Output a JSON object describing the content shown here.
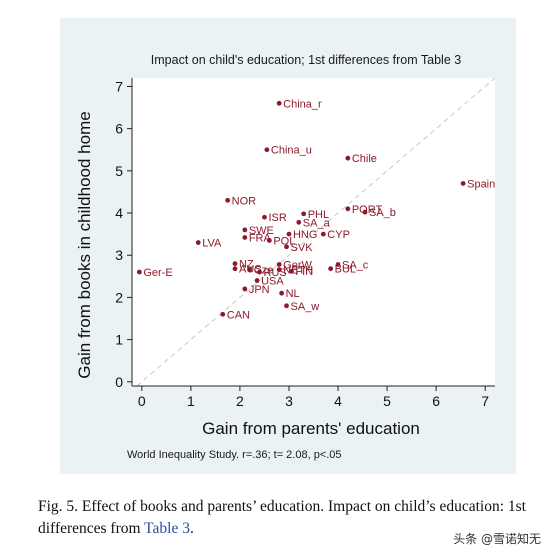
{
  "chart_data": {
    "type": "scatter",
    "title": "Impact on child's education; 1st differences from Table 3",
    "xlabel": "Gain from parents' education",
    "ylabel": "Gain from books in childhood home",
    "xlim": [
      -0.2,
      7.2
    ],
    "ylim": [
      -0.1,
      7.2
    ],
    "xticks": [
      "0",
      "1",
      "2",
      "3",
      "4",
      "5",
      "6",
      "7"
    ],
    "yticks": [
      "0",
      "1",
      "2",
      "3",
      "4",
      "5",
      "6",
      "7"
    ],
    "grid": false,
    "reference_line": "y = x (dashed)",
    "marker_color": "#8b1a2b",
    "points": [
      {
        "label": "China_r",
        "x": 2.8,
        "y": 6.6
      },
      {
        "label": "China_u",
        "x": 2.55,
        "y": 5.5
      },
      {
        "label": "Chile",
        "x": 4.2,
        "y": 5.3
      },
      {
        "label": "Spain",
        "x": 6.55,
        "y": 4.7
      },
      {
        "label": "NOR",
        "x": 1.75,
        "y": 4.3
      },
      {
        "label": "PORT",
        "x": 4.2,
        "y": 4.1
      },
      {
        "label": "SA_b",
        "x": 4.55,
        "y": 4.02
      },
      {
        "label": "PHL",
        "x": 3.3,
        "y": 3.98
      },
      {
        "label": "ISR",
        "x": 2.5,
        "y": 3.9
      },
      {
        "label": "SA_a",
        "x": 3.2,
        "y": 3.78
      },
      {
        "label": "SWE",
        "x": 2.1,
        "y": 3.6
      },
      {
        "label": "HNG",
        "x": 3.0,
        "y": 3.5
      },
      {
        "label": "CYP",
        "x": 3.7,
        "y": 3.5
      },
      {
        "label": "FRA",
        "x": 2.1,
        "y": 3.42
      },
      {
        "label": "POL",
        "x": 2.6,
        "y": 3.35
      },
      {
        "label": "SVK",
        "x": 2.95,
        "y": 3.2
      },
      {
        "label": "LVA",
        "x": 1.15,
        "y": 3.3
      },
      {
        "label": "NZ",
        "x": 1.9,
        "y": 2.8
      },
      {
        "label": "GerW",
        "x": 2.8,
        "y": 2.78
      },
      {
        "label": "SA_c",
        "x": 4.0,
        "y": 2.78
      },
      {
        "label": "AUS",
        "x": 1.9,
        "y": 2.68
      },
      {
        "label": "Cze",
        "x": 2.2,
        "y": 2.66
      },
      {
        "label": "RUS",
        "x": 2.4,
        "y": 2.6
      },
      {
        "label": "NETH",
        "x": 2.8,
        "y": 2.66
      },
      {
        "label": "FIN",
        "x": 3.05,
        "y": 2.62
      },
      {
        "label": "BUL",
        "x": 3.85,
        "y": 2.68
      },
      {
        "label": "Ger-E",
        "x": -0.05,
        "y": 2.6
      },
      {
        "label": "USA",
        "x": 2.35,
        "y": 2.4
      },
      {
        "label": "JPN",
        "x": 2.1,
        "y": 2.2
      },
      {
        "label": "NL",
        "x": 2.85,
        "y": 2.1
      },
      {
        "label": "SA_w",
        "x": 2.95,
        "y": 1.8
      },
      {
        "label": "CAN",
        "x": 1.65,
        "y": 1.6
      }
    ],
    "note": "World Inequality Study. r=.36;  t= 2.08, p<.05"
  },
  "caption": {
    "text": "Fig. 5.  Effect of books and parents’ education. Impact on child’s education: 1st differences from ",
    "link": "Table 3",
    "end": "."
  },
  "watermark": "头条 @雪诺知无"
}
